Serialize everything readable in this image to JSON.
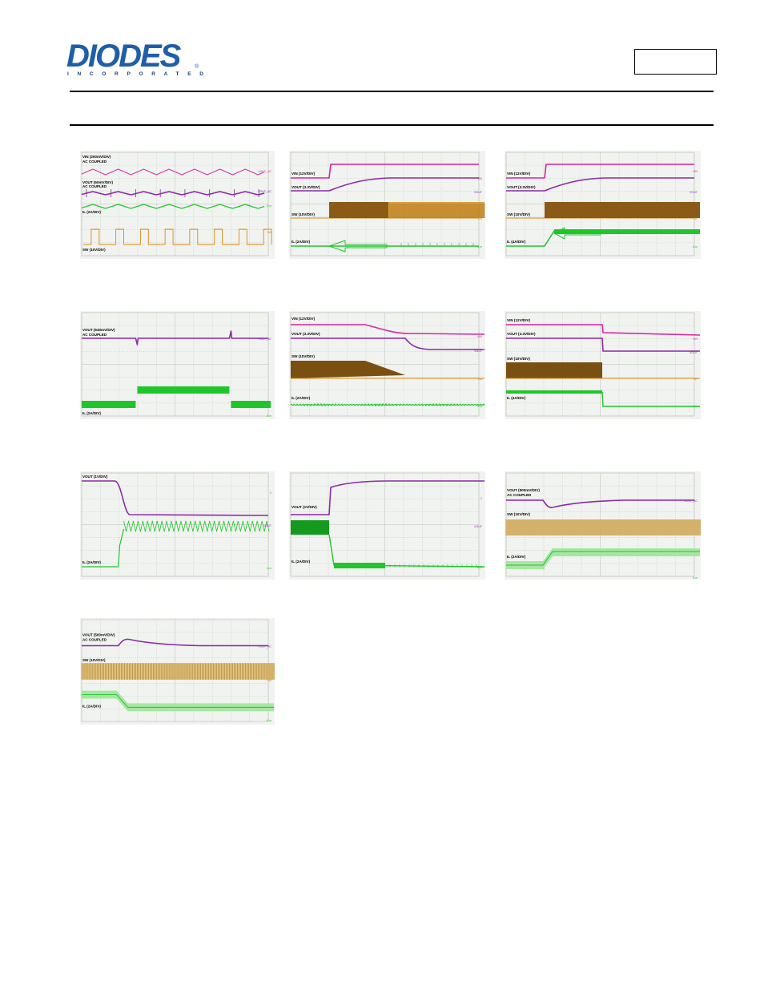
{
  "header": {
    "logo_text": "DIODES",
    "logo_subtext": "INCORPORATED",
    "logo_reg": "®"
  },
  "scopes": [
    {
      "id": "s1",
      "labels": [
        "VIN (200mV/DIV)",
        "AC COUPLED",
        "VOUT (50mV/DIV)",
        "AC COUPLED",
        "IL (2A/DIV)",
        "SW (10V/DIV)"
      ]
    },
    {
      "id": "s2",
      "labels": [
        "VIN (12V/DIV)",
        "VOUT (3.3V/DIV)",
        "SW (10V/DIV)",
        "IL (2A/DIV)"
      ]
    },
    {
      "id": "s3",
      "labels": [
        "VIN (12V/DIV)",
        "VOUT (3.3V/DIV)",
        "SW (10V/DIV)",
        "IL (4A/DIV)"
      ]
    },
    {
      "id": "s4",
      "labels": [
        "VOUT (640mV/DIV)",
        "AC COUPLED",
        "IL (2A/DIV)"
      ]
    },
    {
      "id": "s5",
      "labels": [
        "VIN (12V/DIV)",
        "VOUT (3.3V/DIV)",
        "SW (10V/DIV)",
        "IL (2A/DIV)"
      ]
    },
    {
      "id": "s6",
      "labels": [
        "VIN (12V/DIV)",
        "VOUT (3.3V/DIV)",
        "SW (10V/DIV)",
        "IL (4A/DIV)"
      ]
    },
    {
      "id": "s7",
      "labels": [
        "VOUT (1V/DIV)",
        "IL (2A/DIV)"
      ]
    },
    {
      "id": "s8",
      "labels": [
        "VOUT (1V/DIV)",
        "IL (2A/DIV)"
      ]
    },
    {
      "id": "s9",
      "labels": [
        "VOUT (500mV/DIV)",
        "AC COUPLED",
        "SW (10V/DIV)",
        "IL (2A/DIV)"
      ]
    },
    {
      "id": "s10",
      "labels": [
        "VOUT (500mV/DIV)",
        "AC COUPLED",
        "SW (10V/DIV)",
        "IL (2A/DIV)"
      ]
    }
  ],
  "colors": {
    "vin": "#d6269e",
    "vout": "#8a2aa8",
    "sw": "#d98a10",
    "il": "#1fc62a",
    "grid": "#b8bdb5",
    "screen": "#f1f3f0"
  },
  "channel_markers": {
    "vout_ac": "VOUT_AC",
    "vin": "VIN",
    "vout": "VOUT",
    "sw": "SW",
    "il": "ILm"
  }
}
